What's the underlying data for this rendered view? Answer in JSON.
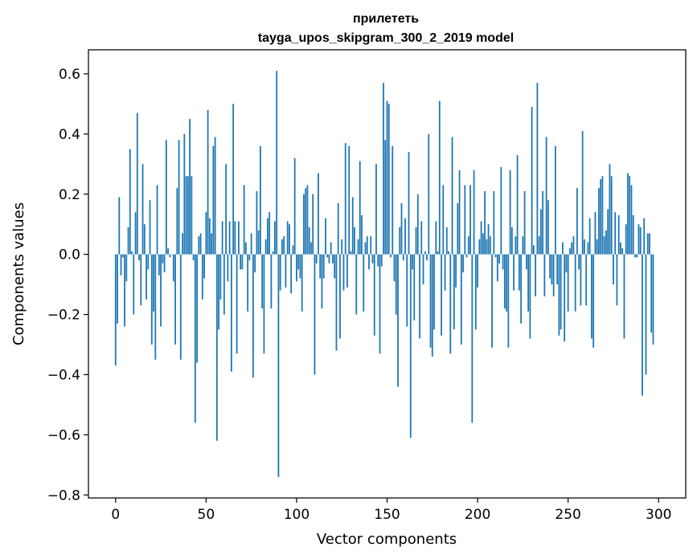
{
  "chart_data": {
    "type": "bar",
    "title": "прилететь",
    "subtitle": "tayga_upos_skipgram_300_2_2019 model",
    "xlabel": "Vector components",
    "ylabel": "Components values",
    "xlim": [
      -15,
      315
    ],
    "ylim": [
      -0.81,
      0.68
    ],
    "xticks": [
      0,
      50,
      100,
      150,
      200,
      250,
      300
    ],
    "yticks": [
      -0.8,
      -0.6,
      -0.4,
      -0.2,
      0.0,
      0.2,
      0.4,
      0.6
    ],
    "ytick_labels": [
      "−0.8",
      "−0.6",
      "−0.4",
      "−0.2",
      "0.0",
      "0.2",
      "0.4",
      "0.6"
    ],
    "grid": false,
    "color": "#1f77b4",
    "x_start": 0,
    "values": [
      -0.37,
      -0.23,
      0.19,
      -0.07,
      -0.01,
      -0.24,
      -0.09,
      0.09,
      0.35,
      0.01,
      -0.2,
      0.14,
      0.47,
      -0.02,
      -0.17,
      0.3,
      0.1,
      -0.15,
      -0.05,
      0.18,
      -0.3,
      -0.19,
      -0.35,
      0.23,
      -0.07,
      -0.24,
      -0.03,
      -0.06,
      0.38,
      0.02,
      -0.01,
      0.0,
      -0.09,
      -0.3,
      0.22,
      0.38,
      -0.35,
      0.07,
      0.4,
      0.26,
      0.26,
      0.45,
      0.26,
      -0.02,
      -0.56,
      -0.36,
      0.06,
      0.07,
      -0.15,
      -0.08,
      0.14,
      0.48,
      0.12,
      0.07,
      0.36,
      0.39,
      -0.62,
      -0.25,
      -0.15,
      0.11,
      -0.2,
      0.3,
      -0.09,
      0.11,
      -0.39,
      0.5,
      0.11,
      -0.33,
      0.11,
      -0.05,
      -0.05,
      0.23,
      0.04,
      -0.19,
      -0.02,
      0.07,
      -0.41,
      -0.06,
      0.21,
      0.08,
      0.36,
      -0.18,
      -0.33,
      0.05,
      0.12,
      0.14,
      -0.18,
      0.01,
      0.11,
      0.61,
      -0.74,
      -0.12,
      0.05,
      0.06,
      -0.11,
      0.11,
      0.1,
      -0.13,
      0.03,
      0.32,
      -0.09,
      -0.05,
      -0.08,
      -0.19,
      0.2,
      0.22,
      0.23,
      0.09,
      0.04,
      0.2,
      -0.4,
      -0.03,
      0.27,
      -0.08,
      -0.18,
      -0.08,
      0.12,
      -0.01,
      -0.03,
      0.04,
      -0.03,
      -0.08,
      -0.32,
      0.17,
      -0.28,
      0.05,
      -0.12,
      0.37,
      -0.11,
      0.36,
      0.01,
      0.19,
      0.09,
      -0.2,
      0.05,
      0.31,
      0.13,
      -0.19,
      0.04,
      0.06,
      -0.05,
      0.06,
      -0.03,
      -0.27,
      0.3,
      -0.04,
      -0.33,
      -0.04,
      0.57,
      0.38,
      0.51,
      0.5,
      -0.01,
      0.36,
      -0.09,
      -0.2,
      -0.44,
      0.09,
      0.17,
      -0.02,
      0.12,
      -0.24,
      0.34,
      -0.61,
      -0.05,
      -0.22,
      0.09,
      0.2,
      -0.28,
      0.11,
      -0.1,
      0.01,
      -0.02,
      0.4,
      -0.31,
      -0.34,
      -0.25,
      0.11,
      0.01,
      0.51,
      -0.27,
      0.23,
      -0.12,
      0.09,
      0.01,
      -0.33,
      0.39,
      -0.25,
      -0.11,
      0.17,
      0.28,
      -0.3,
      -0.06,
      0.23,
      -0.01,
      0.06,
      0.23,
      -0.56,
      0.28,
      -0.25,
      -0.11,
      0.05,
      0.11,
      0.07,
      0.21,
      0.05,
      0.1,
      0.06,
      -0.31,
      0.21,
      -0.01,
      -0.09,
      -0.03,
      0.29,
      -0.05,
      -0.18,
      -0.19,
      -0.31,
      0.28,
      0.09,
      -0.12,
      0.06,
      0.33,
      -0.12,
      -0.23,
      0.06,
      0.21,
      -0.05,
      -0.19,
      -0.28,
      0.49,
      0.03,
      -0.14,
      0.57,
      0.06,
      0.15,
      0.21,
      -0.14,
      0.39,
      0.18,
      -0.08,
      -0.1,
      -0.14,
      0.36,
      -0.1,
      -0.27,
      -0.25,
      0.04,
      -0.29,
      -0.06,
      -0.19,
      0.02,
      0.04,
      0.06,
      -0.19,
      0.22,
      -0.05,
      -0.17,
      0.41,
      0.05,
      -0.17,
      0.04,
      0.12,
      -0.28,
      -0.31,
      0.14,
      0.05,
      0.22,
      0.25,
      0.26,
      0.06,
      0.08,
      0.15,
      0.3,
      0.26,
      -0.1,
      0.14,
      -0.17,
      0.13,
      0.04,
      0.02,
      -0.28,
      0.1,
      0.27,
      0.26,
      0.23,
      0.13,
      -0.01,
      -0.01,
      0.1,
      0.09,
      -0.47,
      0.12,
      -0.4,
      0.07,
      0.07,
      -0.26,
      -0.3
    ]
  }
}
